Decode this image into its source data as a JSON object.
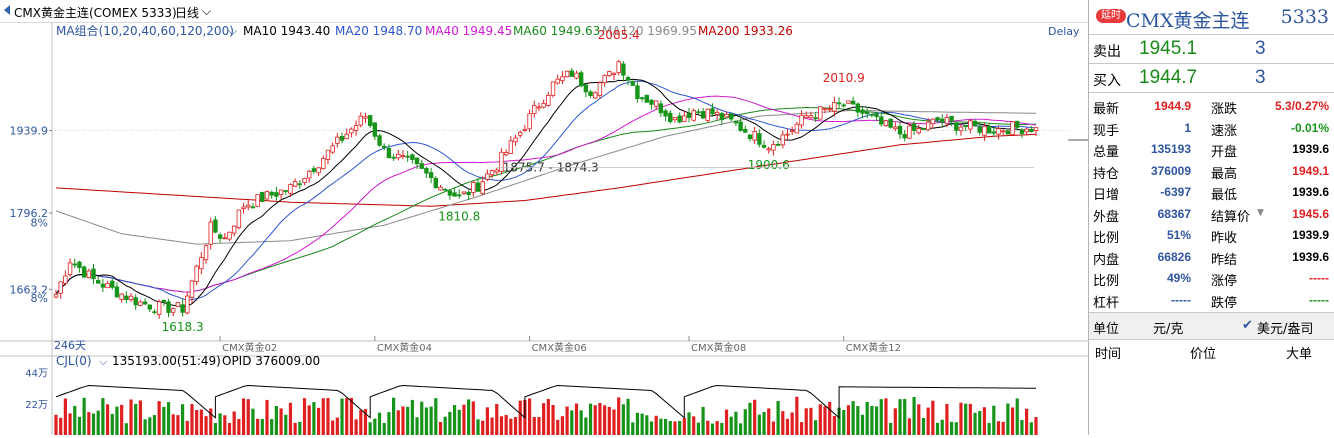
{
  "header": {
    "symbol_line": "CMX黄金主连(COMEX 5333)",
    "period": "日线",
    "ma_group_label": "MA组合(10,20,40,60,120,200)",
    "ma10": "MA10 1943.40",
    "ma20": "MA20 1948.70",
    "ma40": "MA40 1949.45",
    "ma60": "MA60 1949.63",
    "ma120": "MA120 1969.95",
    "ma200": "MA200 1933.26",
    "delay_tag": "Delay"
  },
  "colors": {
    "up": "#e02020",
    "down": "#16941a",
    "ma10": "#000000",
    "ma20": "#2e55d0",
    "ma40": "#d21ad2",
    "ma60": "#1a8a1a",
    "ma120": "#8a8a8a",
    "ma200": "#c00000",
    "axis_text": "#2e55a0"
  },
  "chart_data": {
    "type": "candlestick",
    "count_label": "246天",
    "price_axis": {
      "ylim": [
        1575,
        2115
      ],
      "ticks": [
        {
          "value": 1939.9,
          "label": "1939.9"
        },
        {
          "value": 1796.2,
          "label": "1796.2"
        },
        {
          "value": 1663.2,
          "label": "1663.2"
        }
      ],
      "pct_labels": [
        {
          "value": 1780,
          "label": "8%"
        },
        {
          "value": 1648,
          "label": "8%"
        }
      ]
    },
    "x_labels": [
      "CMX黄金02",
      "CMX黄金04",
      "CMX黄金06",
      "CMX黄金08",
      "CMX黄金12"
    ],
    "x_label_index": [
      35,
      68,
      101,
      135,
      168
    ],
    "annotations": [
      {
        "text": "2085.4",
        "index": 120,
        "value": 2085.4,
        "pos": "above"
      },
      {
        "text": "2010.9",
        "index": 168,
        "value": 2010.9,
        "pos": "above"
      },
      {
        "text": "1900.6",
        "index": 152,
        "value": 1900.6,
        "pos": "below"
      },
      {
        "text": "1875.7 - 1874.3",
        "index": 94,
        "value": 1875.7,
        "pos": "right"
      },
      {
        "text": "1810.8",
        "index": 86,
        "value": 1810.8,
        "pos": "below"
      },
      {
        "text": "1618.3",
        "index": 27,
        "value": 1618.3,
        "pos": "below"
      }
    ],
    "anchors": [
      [
        0,
        1655
      ],
      [
        3,
        1715
      ],
      [
        8,
        1680
      ],
      [
        14,
        1655
      ],
      [
        18,
        1640
      ],
      [
        22,
        1632
      ],
      [
        27,
        1630
      ],
      [
        30,
        1700
      ],
      [
        33,
        1770
      ],
      [
        36,
        1752
      ],
      [
        40,
        1810
      ],
      [
        45,
        1825
      ],
      [
        50,
        1840
      ],
      [
        56,
        1885
      ],
      [
        62,
        1935
      ],
      [
        66,
        1965
      ],
      [
        70,
        1905
      ],
      [
        76,
        1880
      ],
      [
        82,
        1845
      ],
      [
        86,
        1822
      ],
      [
        90,
        1845
      ],
      [
        94,
        1880
      ],
      [
        98,
        1925
      ],
      [
        102,
        1975
      ],
      [
        106,
        2020
      ],
      [
        110,
        2040
      ],
      [
        114,
        2010
      ],
      [
        118,
        2035
      ],
      [
        120,
        2060
      ],
      [
        124,
        2005
      ],
      [
        128,
        1985
      ],
      [
        132,
        1960
      ],
      [
        136,
        1975
      ],
      [
        140,
        1970
      ],
      [
        144,
        1955
      ],
      [
        148,
        1935
      ],
      [
        152,
        1915
      ],
      [
        156,
        1935
      ],
      [
        160,
        1965
      ],
      [
        164,
        1975
      ],
      [
        168,
        1985
      ],
      [
        172,
        1970
      ],
      [
        176,
        1950
      ],
      [
        180,
        1935
      ],
      [
        184,
        1940
      ],
      [
        188,
        1958
      ],
      [
        192,
        1950
      ],
      [
        196,
        1945
      ],
      [
        200,
        1942
      ],
      [
        204,
        1945
      ],
      [
        209,
        1944.9
      ]
    ],
    "ma200_anchors": [
      [
        0,
        1840
      ],
      [
        20,
        1830
      ],
      [
        50,
        1815
      ],
      [
        80,
        1808
      ],
      [
        100,
        1818
      ],
      [
        120,
        1840
      ],
      [
        140,
        1865
      ],
      [
        160,
        1890
      ],
      [
        180,
        1915
      ],
      [
        200,
        1930
      ],
      [
        209,
        1933.26
      ]
    ],
    "ma120_anchors": [
      [
        0,
        1800
      ],
      [
        14,
        1760
      ],
      [
        30,
        1742
      ],
      [
        50,
        1748
      ],
      [
        70,
        1775
      ],
      [
        90,
        1825
      ],
      [
        110,
        1880
      ],
      [
        130,
        1930
      ],
      [
        150,
        1965
      ],
      [
        170,
        1975
      ],
      [
        190,
        1972
      ],
      [
        209,
        1969.95
      ]
    ],
    "volume_panel": {
      "label": "CJL(0)",
      "readout": "135193.00(51:49)",
      "opid": "OPID 376009.00",
      "ylim": [
        0,
        480000
      ],
      "ticks": [
        {
          "value": 440000,
          "label": "44万"
        },
        {
          "value": 220000,
          "label": "22万"
        }
      ]
    }
  },
  "quote": {
    "delay_badge": "延时",
    "name": "CMX黄金主连",
    "code": "5333",
    "sell_label": "卖出",
    "sell_price": "1945.1",
    "sell_vol": "3",
    "buy_label": "买入",
    "buy_price": "1944.7",
    "buy_vol": "3",
    "rows": [
      {
        "k1": "最新",
        "v1": "1944.9",
        "c1": "red",
        "k2": "涨跌",
        "v2": "5.3/0.27%",
        "c2": "red"
      },
      {
        "k1": "现手",
        "v1": "1",
        "c1": "blue",
        "k2": "速涨",
        "v2": "-0.01%",
        "c2": "green"
      },
      {
        "k1": "总量",
        "v1": "135193",
        "c1": "blue",
        "k2": "开盘",
        "v2": "1939.6",
        "c2": "blk"
      },
      {
        "k1": "持仓",
        "v1": "376009",
        "c1": "blue",
        "k2": "最高",
        "v2": "1949.1",
        "c2": "red"
      },
      {
        "k1": "日增",
        "v1": "-6397",
        "c1": "blue",
        "k2": "最低",
        "v2": "1939.6",
        "c2": "blk"
      },
      {
        "k1": "外盘",
        "v1": "68367",
        "c1": "blue",
        "k2": "结算价",
        "v2": "1945.6",
        "c2": "red"
      },
      {
        "k1": "比例",
        "v1": "51%",
        "c1": "blue",
        "k2": "昨收",
        "v2": "1939.9",
        "c2": "blk"
      },
      {
        "k1": "内盘",
        "v1": "66826",
        "c1": "blue",
        "k2": "昨结",
        "v2": "1939.6",
        "c2": "blk"
      },
      {
        "k1": "比例",
        "v1": "49%",
        "c1": "blue",
        "k2": "涨停",
        "v2": "-----",
        "c2": "red"
      },
      {
        "k1": "杠杆",
        "v1": "-----",
        "c1": "blue",
        "k2": "跌停",
        "v2": "-----",
        "c2": "green"
      }
    ],
    "unit_label": "单位",
    "unit_value": "元/克",
    "unit_option": "美元/盎司",
    "trade_headers": [
      "时间",
      "价位",
      "大单"
    ]
  }
}
